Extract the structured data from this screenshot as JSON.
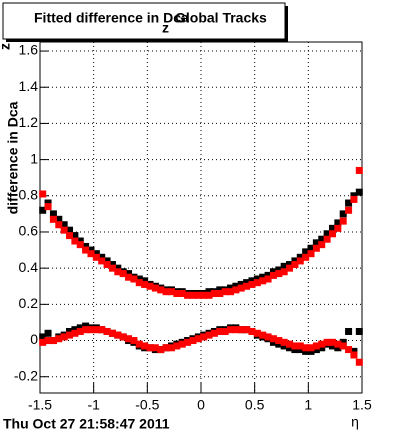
{
  "chart_data": {
    "type": "scatter",
    "title": "Fitted difference in Dca",
    "title_subscript": "z",
    "title_suffix": "Global Tracks",
    "ylabel": "difference in Dca",
    "ylabel_superscript": "z",
    "xlabel": "η",
    "footer": "Thu Oct 27 21:58:47 2011",
    "xlim": [
      -1.5,
      1.5
    ],
    "xticks": [
      -1.5,
      -1,
      -0.5,
      0,
      0.5,
      1,
      1.5
    ],
    "ylim": [
      -0.29,
      1.65
    ],
    "yticks": [
      -0.2,
      0,
      0.2,
      0.4,
      0.6,
      0.8,
      1,
      1.2,
      1.4,
      1.6
    ],
    "grid": true,
    "x": [
      -1.475,
      -1.425,
      -1.375,
      -1.325,
      -1.275,
      -1.225,
      -1.175,
      -1.125,
      -1.075,
      -1.025,
      -0.975,
      -0.925,
      -0.875,
      -0.825,
      -0.775,
      -0.725,
      -0.675,
      -0.625,
      -0.575,
      -0.525,
      -0.475,
      -0.425,
      -0.375,
      -0.325,
      -0.275,
      -0.225,
      -0.175,
      -0.125,
      -0.075,
      -0.025,
      0.025,
      0.075,
      0.125,
      0.175,
      0.225,
      0.275,
      0.325,
      0.375,
      0.425,
      0.475,
      0.525,
      0.575,
      0.625,
      0.675,
      0.725,
      0.775,
      0.825,
      0.875,
      0.925,
      0.975,
      1.025,
      1.075,
      1.125,
      1.175,
      1.225,
      1.275,
      1.325,
      1.375,
      1.425,
      1.475
    ],
    "series": [
      {
        "color": "#000000",
        "values": [
          0.72,
          0.76,
          0.7,
          0.67,
          0.64,
          0.61,
          0.58,
          0.55,
          0.52,
          0.5,
          0.48,
          0.46,
          0.44,
          0.42,
          0.4,
          0.38,
          0.37,
          0.35,
          0.34,
          0.33,
          0.31,
          0.3,
          0.29,
          0.28,
          0.28,
          0.27,
          0.27,
          0.26,
          0.26,
          0.26,
          0.26,
          0.27,
          0.27,
          0.28,
          0.28,
          0.29,
          0.3,
          0.31,
          0.32,
          0.33,
          0.34,
          0.35,
          0.36,
          0.38,
          0.39,
          0.41,
          0.42,
          0.44,
          0.46,
          0.49,
          0.51,
          0.54,
          0.56,
          0.59,
          0.62,
          0.65,
          0.7,
          0.76,
          0.8,
          0.82
        ]
      },
      {
        "color": "#ff0000",
        "values": [
          0.81,
          0.74,
          0.67,
          0.64,
          0.61,
          0.58,
          0.55,
          0.53,
          0.5,
          0.48,
          0.46,
          0.44,
          0.42,
          0.4,
          0.38,
          0.37,
          0.35,
          0.34,
          0.32,
          0.31,
          0.3,
          0.29,
          0.28,
          0.27,
          0.27,
          0.26,
          0.26,
          0.25,
          0.25,
          0.25,
          0.25,
          0.25,
          0.26,
          0.26,
          0.27,
          0.27,
          0.28,
          0.29,
          0.3,
          0.31,
          0.32,
          0.33,
          0.34,
          0.36,
          0.37,
          0.38,
          0.4,
          0.42,
          0.44,
          0.46,
          0.48,
          0.51,
          0.53,
          0.56,
          0.59,
          0.62,
          0.66,
          0.72,
          0.78,
          0.94
        ]
      },
      {
        "color": "#000000",
        "values": [
          0.02,
          0.04,
          0.0,
          0.02,
          0.03,
          0.05,
          0.06,
          0.07,
          0.08,
          0.07,
          0.07,
          0.06,
          0.05,
          0.04,
          0.03,
          0.02,
          0.0,
          -0.01,
          -0.03,
          -0.04,
          -0.04,
          -0.05,
          -0.05,
          -0.04,
          -0.03,
          -0.02,
          -0.01,
          0.0,
          0.01,
          0.02,
          0.03,
          0.04,
          0.05,
          0.06,
          0.06,
          0.07,
          0.07,
          0.06,
          0.06,
          0.05,
          0.03,
          0.02,
          0.01,
          -0.01,
          -0.02,
          -0.03,
          -0.04,
          -0.05,
          -0.05,
          -0.06,
          -0.06,
          -0.05,
          -0.04,
          -0.02,
          -0.03,
          -0.04,
          -0.01,
          0.05,
          -0.06,
          0.05
        ]
      },
      {
        "color": "#ff0000",
        "values": [
          -0.01,
          0.0,
          0.0,
          0.01,
          0.02,
          0.03,
          0.04,
          0.05,
          0.06,
          0.06,
          0.06,
          0.06,
          0.05,
          0.04,
          0.03,
          0.02,
          0.01,
          0.0,
          -0.02,
          -0.03,
          -0.04,
          -0.04,
          -0.05,
          -0.04,
          -0.04,
          -0.03,
          -0.02,
          -0.01,
          0.0,
          0.01,
          0.02,
          0.03,
          0.04,
          0.05,
          0.05,
          0.06,
          0.06,
          0.06,
          0.06,
          0.05,
          0.04,
          0.03,
          0.02,
          0.01,
          0.0,
          -0.01,
          -0.02,
          -0.03,
          -0.03,
          -0.04,
          -0.04,
          -0.03,
          -0.02,
          -0.01,
          -0.01,
          -0.02,
          -0.03,
          -0.05,
          -0.08,
          -0.12
        ]
      }
    ]
  }
}
